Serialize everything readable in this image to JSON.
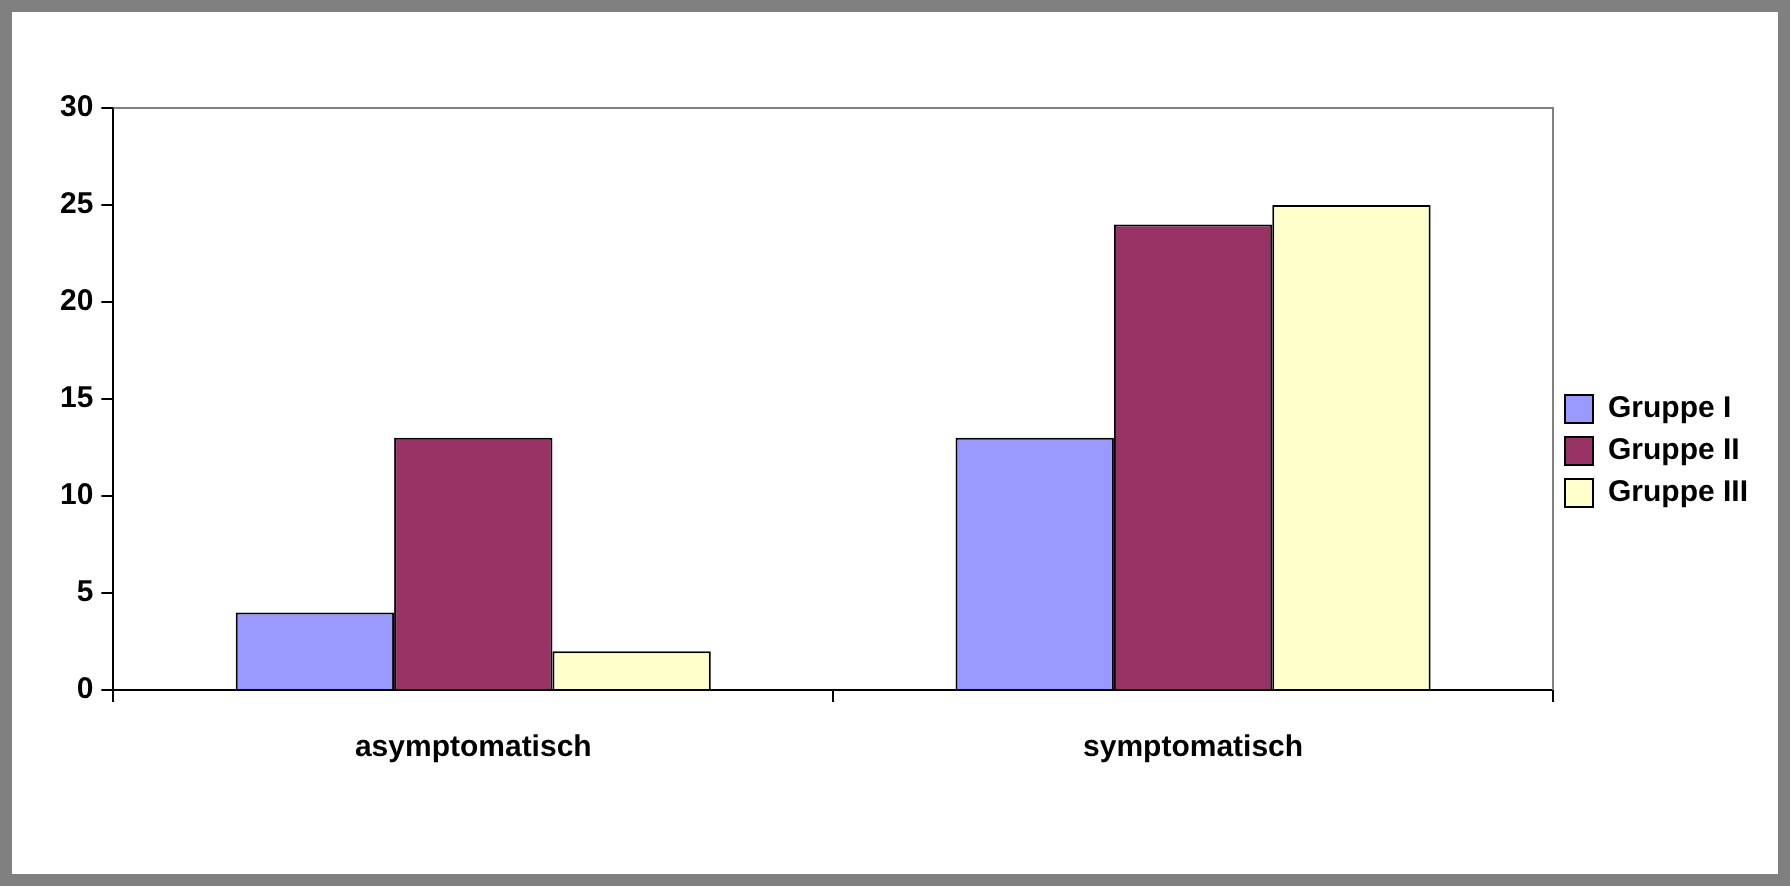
{
  "chart_data": {
    "type": "bar",
    "categories": [
      "asymptomatisch",
      "symptomatisch"
    ],
    "series": [
      {
        "name": "Gruppe I",
        "color": "#9999ff",
        "values": [
          4,
          13
        ]
      },
      {
        "name": "Gruppe II",
        "color": "#993366",
        "values": [
          13,
          24
        ]
      },
      {
        "name": "Gruppe III",
        "color": "#ffffcc",
        "values": [
          2,
          25
        ]
      }
    ],
    "ylim": [
      0,
      30
    ],
    "yticks": [
      0,
      5,
      10,
      15,
      20,
      25,
      30
    ],
    "grid": false,
    "legend": "right"
  }
}
